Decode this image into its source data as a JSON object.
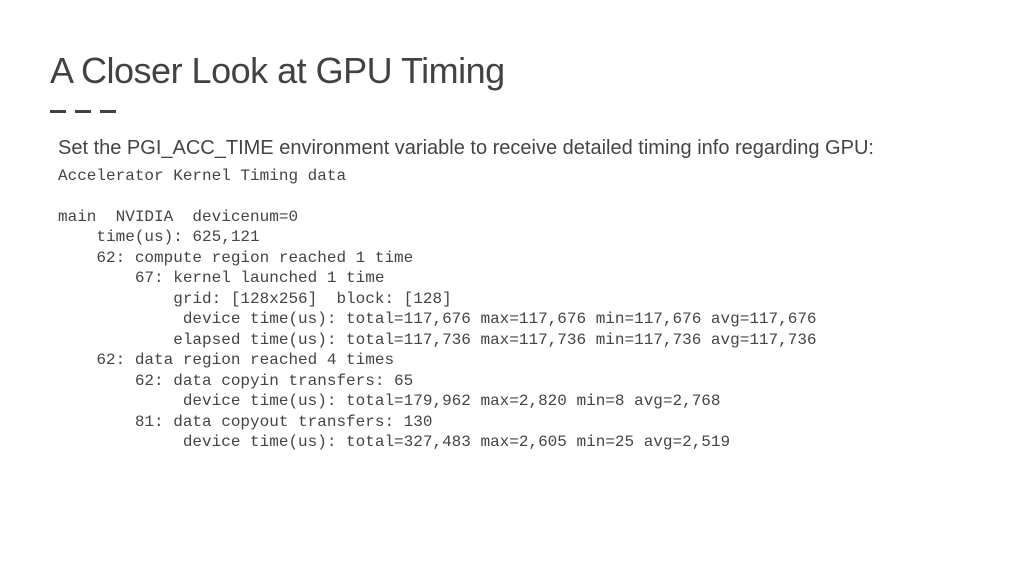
{
  "title": "A Closer Look at GPU Timing",
  "intro": "Set the PGI_ACC_TIME environment variable to receive detailed timing info regarding GPU:",
  "code_lines": [
    "Accelerator Kernel Timing data",
    "",
    "main  NVIDIA  devicenum=0",
    "    time(us): 625,121",
    "    62: compute region reached 1 time",
    "        67: kernel launched 1 time",
    "            grid: [128x256]  block: [128]",
    "             device time(us): total=117,676 max=117,676 min=117,676 avg=117,676",
    "            elapsed time(us): total=117,736 max=117,736 min=117,736 avg=117,736",
    "    62: data region reached 4 times",
    "        62: data copyin transfers: 65",
    "             device time(us): total=179,962 max=2,820 min=8 avg=2,768",
    "        81: data copyout transfers: 130",
    "             device time(us): total=327,483 max=2,605 min=25 avg=2,519"
  ],
  "colors": {
    "title": "#424242",
    "text": "#444444",
    "background": "#ffffff"
  },
  "fontsizes": {
    "title": 36,
    "intro": 20,
    "code": 16
  }
}
